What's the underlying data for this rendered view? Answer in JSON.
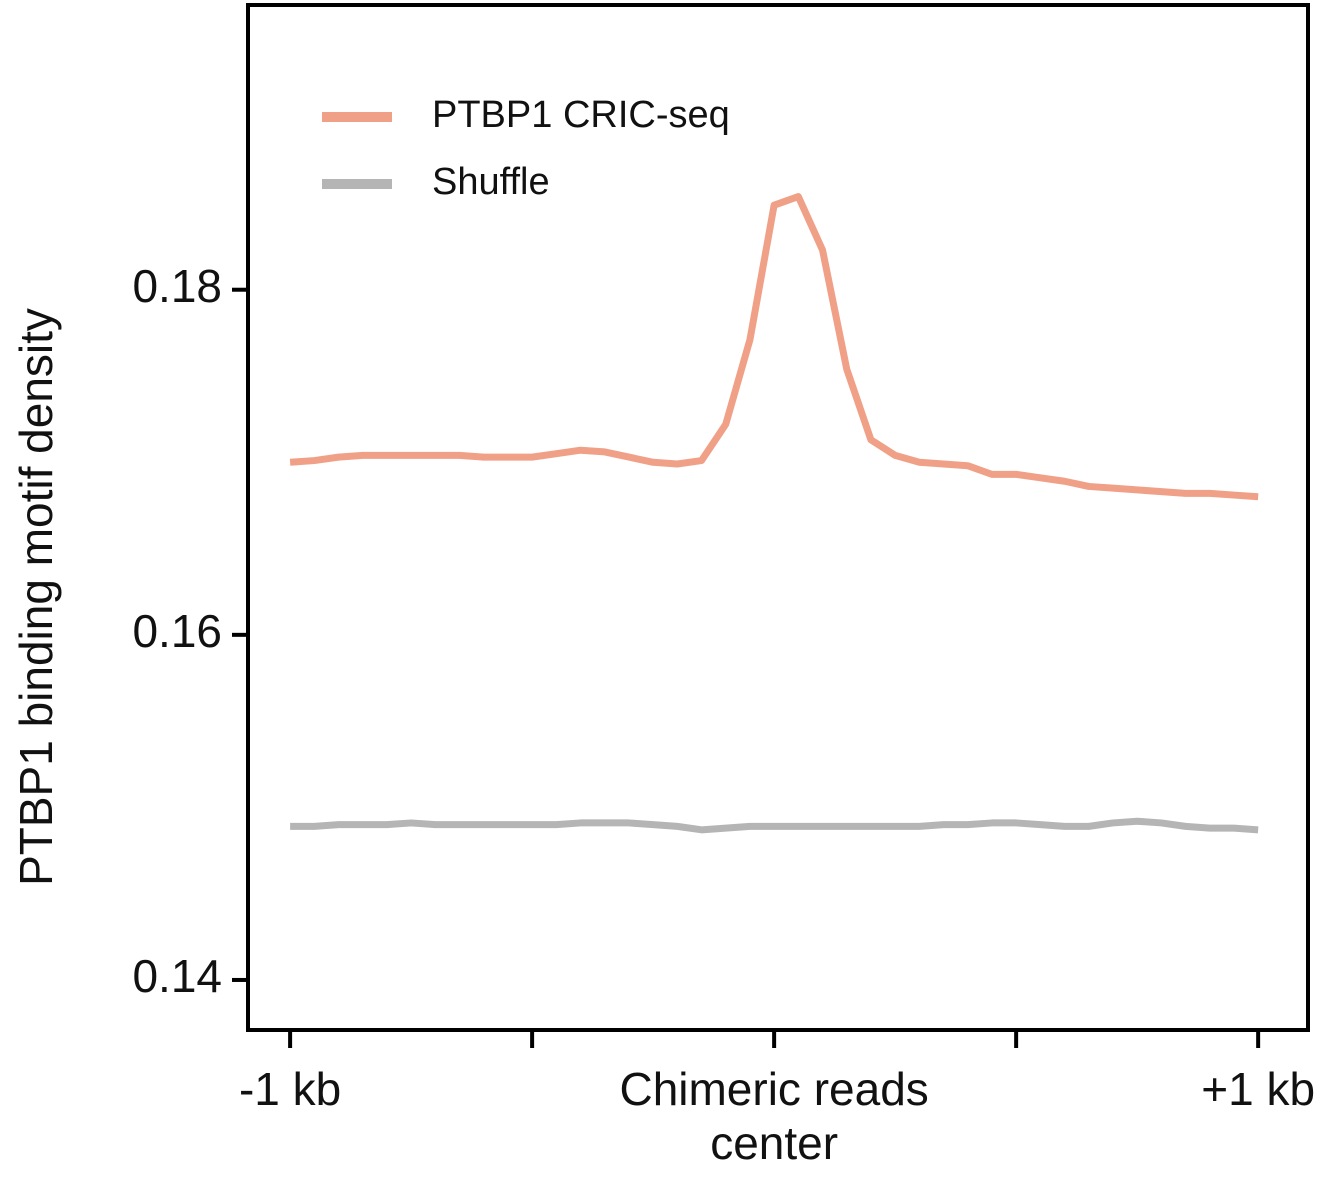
{
  "chart_data": {
    "type": "line",
    "y_label": "PTBP1 binding motif density",
    "x": [
      -1000,
      -950,
      -900,
      -850,
      -800,
      -750,
      -700,
      -650,
      -600,
      -550,
      -500,
      -450,
      -400,
      -350,
      -300,
      -250,
      -200,
      -150,
      -100,
      -50,
      0,
      50,
      100,
      150,
      200,
      250,
      300,
      350,
      400,
      450,
      500,
      550,
      600,
      650,
      700,
      750,
      800,
      850,
      900,
      950,
      1000
    ],
    "series": [
      {
        "name": "PTBP1 CRIC-seq",
        "color": "#f0a086",
        "values": [
          0.17,
          0.1701,
          0.1703,
          0.1704,
          0.1704,
          0.1704,
          0.1704,
          0.1704,
          0.1703,
          0.1703,
          0.1703,
          0.1705,
          0.1707,
          0.1706,
          0.1703,
          0.17,
          0.1699,
          0.1701,
          0.1722,
          0.1771,
          0.1849,
          0.1854,
          0.1823,
          0.1754,
          0.1713,
          0.1704,
          0.17,
          0.1699,
          0.1698,
          0.1693,
          0.1693,
          0.1691,
          0.1689,
          0.1686,
          0.1685,
          0.1684,
          0.1683,
          0.1682,
          0.1682,
          0.1681,
          0.168
        ]
      },
      {
        "name": "Shuffle",
        "color": "#b5b5b5",
        "values": [
          0.1489,
          0.1489,
          0.149,
          0.149,
          0.149,
          0.1491,
          0.149,
          0.149,
          0.149,
          0.149,
          0.149,
          0.149,
          0.1491,
          0.1491,
          0.1491,
          0.149,
          0.1489,
          0.1487,
          0.1488,
          0.1489,
          0.1489,
          0.1489,
          0.1489,
          0.1489,
          0.1489,
          0.1489,
          0.1489,
          0.149,
          0.149,
          0.1491,
          0.1491,
          0.149,
          0.1489,
          0.1489,
          0.1491,
          0.1492,
          0.1491,
          0.1489,
          0.1488,
          0.1488,
          0.1487
        ]
      }
    ],
    "xlim": [
      -1087,
      1103
    ],
    "xticks": [
      {
        "value": -1000,
        "label": "-1 kb"
      },
      {
        "value": -500,
        "label": null
      },
      {
        "value": 0,
        "label": "Chimeric reads center"
      },
      {
        "value": 500,
        "label": null
      },
      {
        "value": 1000,
        "label": "+1 kb"
      }
    ],
    "ylim": [
      0.1371,
      0.1965
    ],
    "yticks": [
      0.14,
      0.16,
      0.18
    ],
    "legend": "upper left"
  }
}
